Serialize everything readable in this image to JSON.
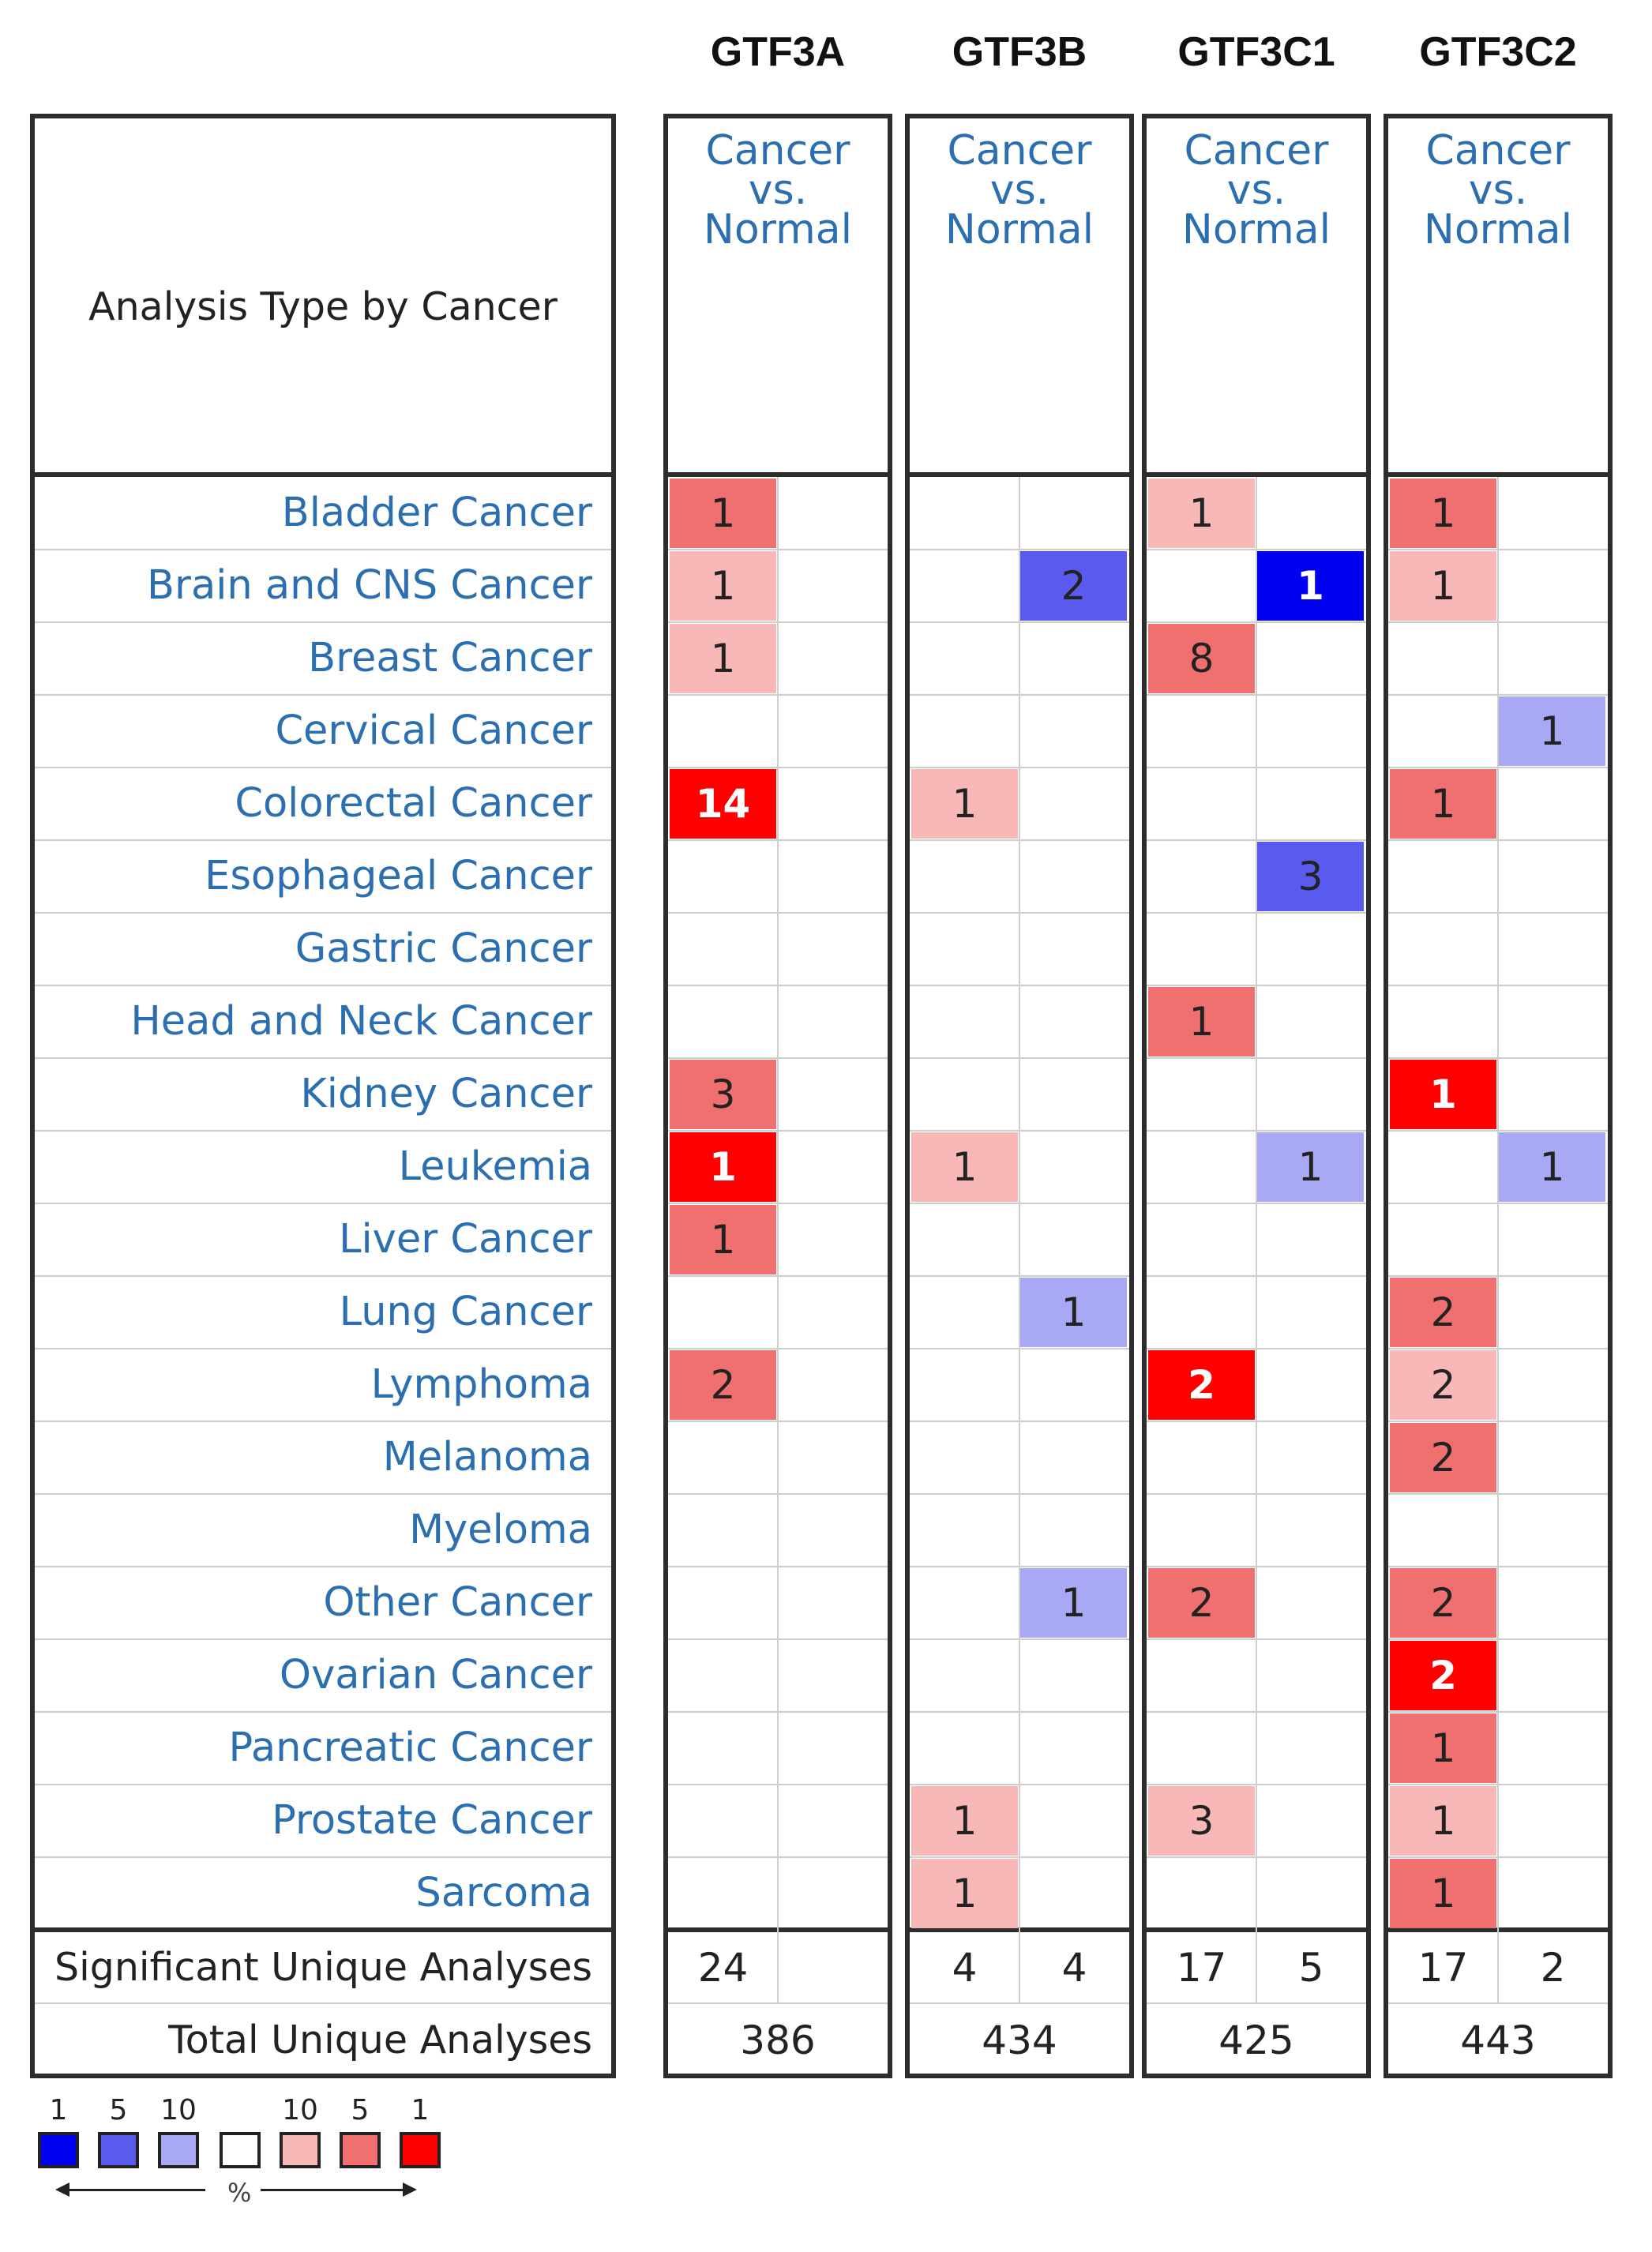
{
  "genes": [
    "GTF3A",
    "GTF3B",
    "GTF3C1",
    "GTF3C2"
  ],
  "header": {
    "analysis_type": "Analysis Type by Cancer",
    "cancer_vs_normal": [
      "Cancer",
      "vs.",
      "Normal"
    ]
  },
  "cancers": [
    "Bladder Cancer",
    "Brain and CNS Cancer",
    "Breast Cancer",
    "Cervical Cancer",
    "Colorectal Cancer",
    "Esophageal Cancer",
    "Gastric Cancer",
    "Head and Neck Cancer",
    "Kidney Cancer",
    "Leukemia",
    "Liver Cancer",
    "Lung Cancer",
    "Lymphoma",
    "Melanoma",
    "Myeloma",
    "Other Cancer",
    "Ovarian Cancer",
    "Pancreatic Cancer",
    "Prostate Cancer",
    "Sarcoma"
  ],
  "cells": [
    {
      "gene": 0,
      "row": 0,
      "side": "up",
      "value": "1",
      "color": "#f07070"
    },
    {
      "gene": 0,
      "row": 1,
      "side": "up",
      "value": "1",
      "color": "#f9b8b8"
    },
    {
      "gene": 0,
      "row": 2,
      "side": "up",
      "value": "1",
      "color": "#f9b8b8"
    },
    {
      "gene": 0,
      "row": 4,
      "side": "up",
      "value": "14",
      "color": "#ff0000"
    },
    {
      "gene": 0,
      "row": 8,
      "side": "up",
      "value": "3",
      "color": "#f07070"
    },
    {
      "gene": 0,
      "row": 9,
      "side": "up",
      "value": "1",
      "color": "#ff0000"
    },
    {
      "gene": 0,
      "row": 10,
      "side": "up",
      "value": "1",
      "color": "#f07070"
    },
    {
      "gene": 0,
      "row": 12,
      "side": "up",
      "value": "2",
      "color": "#f07070"
    },
    {
      "gene": 1,
      "row": 1,
      "side": "down",
      "value": "2",
      "color": "#5a5aee"
    },
    {
      "gene": 1,
      "row": 4,
      "side": "up",
      "value": "1",
      "color": "#f9b8b8"
    },
    {
      "gene": 1,
      "row": 9,
      "side": "up",
      "value": "1",
      "color": "#f9b8b8"
    },
    {
      "gene": 1,
      "row": 11,
      "side": "down",
      "value": "1",
      "color": "#a8a8f5"
    },
    {
      "gene": 1,
      "row": 15,
      "side": "down",
      "value": "1",
      "color": "#a8a8f5"
    },
    {
      "gene": 1,
      "row": 18,
      "side": "up",
      "value": "1",
      "color": "#f9b8b8"
    },
    {
      "gene": 1,
      "row": 19,
      "side": "up",
      "value": "1",
      "color": "#f9b8b8"
    },
    {
      "gene": 2,
      "row": 0,
      "side": "up",
      "value": "1",
      "color": "#f9b8b8"
    },
    {
      "gene": 2,
      "row": 1,
      "side": "down",
      "value": "1",
      "color": "#0000f0"
    },
    {
      "gene": 2,
      "row": 2,
      "side": "up",
      "value": "8",
      "color": "#f07070"
    },
    {
      "gene": 2,
      "row": 5,
      "side": "down",
      "value": "3",
      "color": "#5a5aee"
    },
    {
      "gene": 2,
      "row": 7,
      "side": "up",
      "value": "1",
      "color": "#f07070"
    },
    {
      "gene": 2,
      "row": 9,
      "side": "down",
      "value": "1",
      "color": "#a8a8f5"
    },
    {
      "gene": 2,
      "row": 12,
      "side": "up",
      "value": "2",
      "color": "#ff0000"
    },
    {
      "gene": 2,
      "row": 15,
      "side": "up",
      "value": "2",
      "color": "#f07070"
    },
    {
      "gene": 2,
      "row": 18,
      "side": "up",
      "value": "3",
      "color": "#f9b8b8"
    },
    {
      "gene": 3,
      "row": 0,
      "side": "up",
      "value": "1",
      "color": "#f07070"
    },
    {
      "gene": 3,
      "row": 1,
      "side": "up",
      "value": "1",
      "color": "#f9b8b8"
    },
    {
      "gene": 3,
      "row": 3,
      "side": "down",
      "value": "1",
      "color": "#a8a8f5"
    },
    {
      "gene": 3,
      "row": 4,
      "side": "up",
      "value": "1",
      "color": "#f07070"
    },
    {
      "gene": 3,
      "row": 8,
      "side": "up",
      "value": "1",
      "color": "#ff0000"
    },
    {
      "gene": 3,
      "row": 9,
      "side": "down",
      "value": "1",
      "color": "#a8a8f5"
    },
    {
      "gene": 3,
      "row": 11,
      "side": "up",
      "value": "2",
      "color": "#f07070"
    },
    {
      "gene": 3,
      "row": 12,
      "side": "up",
      "value": "2",
      "color": "#f9b8b8"
    },
    {
      "gene": 3,
      "row": 13,
      "side": "up",
      "value": "2",
      "color": "#f07070"
    },
    {
      "gene": 3,
      "row": 15,
      "side": "up",
      "value": "2",
      "color": "#f07070"
    },
    {
      "gene": 3,
      "row": 16,
      "side": "up",
      "value": "2",
      "color": "#ff0000"
    },
    {
      "gene": 3,
      "row": 17,
      "side": "up",
      "value": "1",
      "color": "#f07070"
    },
    {
      "gene": 3,
      "row": 18,
      "side": "up",
      "value": "1",
      "color": "#f9b8b8"
    },
    {
      "gene": 3,
      "row": 19,
      "side": "up",
      "value": "1",
      "color": "#f07070"
    }
  ],
  "footer": {
    "significant_label": "Significant Unique Analyses",
    "total_label": "Total Unique Analyses",
    "significant": [
      [
        "24",
        ""
      ],
      [
        "4",
        "4"
      ],
      [
        "17",
        "5"
      ],
      [
        "17",
        "2"
      ]
    ],
    "total": [
      "386",
      "434",
      "425",
      "443"
    ]
  },
  "legend": {
    "labels": [
      "1",
      "5",
      "10",
      "10",
      "5",
      "1"
    ],
    "colors": [
      "#0000f0",
      "#5a5aee",
      "#a8a8f5",
      "#ffffff",
      "#f9b8b8",
      "#f07070",
      "#ff0000"
    ],
    "unit": "%"
  }
}
